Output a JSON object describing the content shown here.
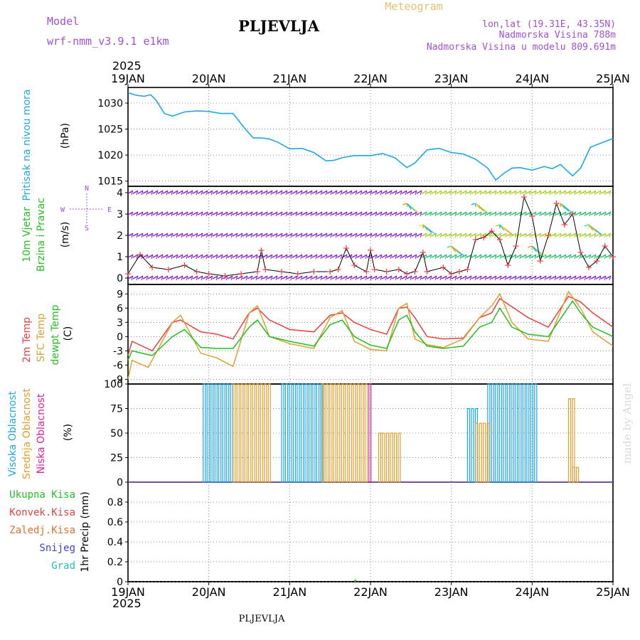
{
  "header": {
    "model_label": "Model",
    "model_name": "wrf-nmm_v3.9.1 e1km",
    "station": "PLJEVLJA",
    "product": "Meteogram",
    "coords": "lon,lat (19.31E, 43.35N)",
    "elevation": "Nadmorska Visina 788m",
    "model_elevation": "Nadmorska Visina u modelu 809.691m"
  },
  "footer": {
    "station": "PLJEVLJA",
    "credit": "made by Angel"
  },
  "time_axis": {
    "year": "2025",
    "ticks": [
      "19JAN",
      "20JAN",
      "21JAN",
      "22JAN",
      "23JAN",
      "24JAN",
      "25JAN"
    ]
  },
  "colors": {
    "pressure": "#1ea8e8",
    "t2m": "#e84040",
    "sfc": "#dca030",
    "dewpt": "#22c022",
    "high_cloud": "#1ea8e8",
    "mid_cloud": "#dca030",
    "low_cloud": "#e020a0",
    "wind_purple": "#8a20d0",
    "precip": "#22c022"
  },
  "chart_data": [
    {
      "type": "line",
      "name": "pressure",
      "labels": {
        "title": "Pritisak na nivou mora",
        "unit": "(hPa)"
      },
      "ylim": [
        1014,
        1033
      ],
      "yticks": [
        "1015",
        "1020",
        "1025",
        "1030"
      ],
      "x_days": [
        0,
        0.1,
        0.2,
        0.28,
        0.35,
        0.45,
        0.55,
        0.7,
        0.85,
        1.0,
        1.15,
        1.3,
        1.45,
        1.55,
        1.65,
        1.75,
        1.85,
        2.0,
        2.15,
        2.3,
        2.45,
        2.55,
        2.65,
        2.8,
        3.0,
        3.15,
        3.3,
        3.45,
        3.55,
        3.7,
        3.85,
        4.0,
        4.15,
        4.3,
        4.45,
        4.55,
        4.65,
        4.75,
        4.85,
        5.0,
        5.15,
        5.25,
        5.35,
        5.5,
        5.6,
        5.72,
        5.85,
        6.0
      ],
      "values": [
        1032,
        1031.5,
        1031.3,
        1031.6,
        1030.5,
        1028,
        1027.5,
        1028.3,
        1028.5,
        1028.4,
        1028,
        1028,
        1025,
        1023.3,
        1023.3,
        1023.1,
        1022.5,
        1021.2,
        1021.3,
        1020.5,
        1018.9,
        1019,
        1019.5,
        1019.9,
        1019.9,
        1020.3,
        1019.5,
        1017.6,
        1018.5,
        1021,
        1021.3,
        1020.5,
        1020.2,
        1019.2,
        1017.5,
        1015.2,
        1016.5,
        1017.5,
        1017.6,
        1017.1,
        1017.8,
        1017.4,
        1018.2,
        1016,
        1017.5,
        1021.5,
        1022.3,
        1023.2
      ]
    },
    {
      "type": "scatter",
      "name": "wind",
      "labels": {
        "title": "10m Vjetar",
        "subtitle": "Brzina i Pravac",
        "unit": "(m/s)",
        "compass": [
          "N",
          "W",
          "E",
          "S"
        ]
      },
      "ylim": [
        -0.3,
        4.3
      ],
      "yticks": [
        "0",
        "1",
        "2",
        "3",
        "4"
      ],
      "speed_x_days": [
        0,
        0.15,
        0.3,
        0.5,
        0.7,
        0.85,
        1.0,
        1.2,
        1.4,
        1.6,
        1.65,
        1.7,
        1.9,
        2.1,
        2.3,
        2.5,
        2.6,
        2.7,
        2.8,
        2.95,
        3.0,
        3.05,
        3.2,
        3.35,
        3.45,
        3.55,
        3.65,
        3.7,
        3.9,
        4.0,
        4.1,
        4.2,
        4.3,
        4.4,
        4.5,
        4.6,
        4.7,
        4.8,
        4.9,
        5.0,
        5.1,
        5.2,
        5.3,
        5.4,
        5.5,
        5.6,
        5.7,
        5.8,
        5.9,
        6.0
      ],
      "speed_values": [
        0.2,
        1.1,
        0.5,
        0.4,
        0.6,
        0.3,
        0.2,
        0.1,
        0.2,
        0.3,
        1.3,
        0.4,
        0.3,
        0.2,
        0.3,
        0.3,
        0.4,
        1.4,
        0.6,
        0.3,
        1.3,
        0.4,
        0.3,
        0.4,
        0.2,
        0.3,
        1.2,
        0.3,
        0.5,
        0.2,
        0.3,
        0.4,
        1.8,
        1.9,
        2.2,
        1.8,
        0.6,
        1.5,
        3.8,
        2.9,
        0.8,
        2.0,
        3.5,
        2.5,
        3.0,
        1.2,
        0.5,
        0.8,
        1.5,
        1.0
      ]
    },
    {
      "type": "line",
      "name": "temperature",
      "labels": {
        "t2m": "2m Temp",
        "sfc": "SFC Temp",
        "dewpt": "dewpt Temp",
        "unit": "(C)"
      },
      "ylim": [
        -10,
        11
      ],
      "yticks": [
        "-9",
        "-6",
        "-3",
        "0",
        "3",
        "6",
        "9"
      ],
      "series": [
        {
          "key": "t2m",
          "x": [
            0,
            0.05,
            0.3,
            0.55,
            0.65,
            0.9,
            1.1,
            1.3,
            1.5,
            1.6,
            1.75,
            2.0,
            2.3,
            2.5,
            2.65,
            2.8,
            3.0,
            3.2,
            3.35,
            3.45,
            3.55,
            3.7,
            3.9,
            4.15,
            4.35,
            4.5,
            4.6,
            4.75,
            4.95,
            5.2,
            5.45,
            5.6,
            5.75,
            6.0
          ],
          "y": [
            -4,
            -1,
            -3,
            3,
            3.5,
            1,
            0.5,
            -0.5,
            5,
            6,
            3.5,
            1.5,
            1,
            4.5,
            5,
            3,
            1.5,
            0.5,
            6,
            6.2,
            4,
            0,
            -0.5,
            -0.3,
            4,
            5,
            8,
            6.3,
            4,
            2,
            8.5,
            7.3,
            5,
            2
          ]
        },
        {
          "key": "sfc",
          "x": [
            0,
            0.05,
            0.25,
            0.55,
            0.65,
            0.9,
            1.1,
            1.3,
            1.5,
            1.6,
            1.75,
            2.0,
            2.3,
            2.5,
            2.65,
            2.8,
            3.0,
            3.2,
            3.35,
            3.45,
            3.55,
            3.7,
            3.9,
            4.15,
            4.35,
            4.5,
            4.6,
            4.75,
            4.95,
            5.2,
            5.45,
            5.6,
            5.75,
            6.0
          ],
          "y": [
            -9,
            -5,
            -6.5,
            3,
            4.5,
            -3.5,
            -4.5,
            -6.3,
            5,
            6.5,
            0,
            -1.5,
            -2.5,
            4,
            5.5,
            -1,
            -2.7,
            -3,
            6,
            7,
            -0.5,
            -1.7,
            -2.3,
            -0.5,
            4,
            6.5,
            9,
            3,
            -0.5,
            -1,
            9.5,
            6,
            1,
            -2
          ]
        },
        {
          "key": "dewpt",
          "x": [
            0,
            0.05,
            0.3,
            0.55,
            0.7,
            0.9,
            1.1,
            1.3,
            1.5,
            1.6,
            1.75,
            2.0,
            2.3,
            2.5,
            2.65,
            2.8,
            3.0,
            3.2,
            3.35,
            3.45,
            3.55,
            3.7,
            3.9,
            4.15,
            4.35,
            4.5,
            4.6,
            4.75,
            4.95,
            5.2,
            5.5,
            5.6,
            5.75,
            6.0
          ],
          "y": [
            -5,
            -3,
            -4,
            0,
            1.5,
            -2.3,
            -2.5,
            -2.5,
            2,
            3.5,
            0,
            -1,
            -2,
            2.5,
            3.5,
            0,
            -1.8,
            -2.5,
            3.5,
            4.5,
            1,
            -2,
            -2.5,
            -2,
            2,
            3,
            6,
            2,
            0.5,
            0,
            7.5,
            5,
            2,
            0
          ]
        }
      ]
    },
    {
      "type": "bar",
      "name": "cloud",
      "labels": {
        "high": "Visoka Oblacnost",
        "mid": "Srednja Oblacnost",
        "low": "Niska Oblacnost",
        "unit": "(%)"
      },
      "ylim": [
        0,
        100
      ],
      "yticks": [
        "0",
        "25",
        "50",
        "75",
        "100"
      ],
      "series": [
        {
          "key": "high",
          "spans": [
            [
              0.93,
              1.3,
              100
            ],
            [
              1.9,
              2.4,
              100
            ],
            [
              4.2,
              4.3,
              75
            ],
            [
              4.45,
              5.05,
              100
            ]
          ]
        },
        {
          "key": "mid",
          "spans": [
            [
              1.3,
              1.75,
              100
            ],
            [
              2.4,
              2.95,
              100
            ],
            [
              3.1,
              3.35,
              50
            ],
            [
              4.3,
              4.45,
              60
            ],
            [
              5.45,
              5.5,
              85
            ],
            [
              5.5,
              5.55,
              15
            ]
          ]
        },
        {
          "key": "low",
          "spans": [
            [
              2.98,
              3.0,
              100
            ]
          ]
        }
      ]
    },
    {
      "type": "bar",
      "name": "precipitation",
      "labels": {
        "total": "Ukupna Kisa",
        "convective": "Konvek.Kisa",
        "freezing": "Zaledj.Kisa",
        "snow": "Snijeg",
        "hail": "Grad",
        "unit": "1hr Precip (mm)"
      },
      "ylim": [
        0,
        1.0
      ],
      "yticks": [
        "0",
        "0.2",
        "0.4",
        "0.6",
        "0.8"
      ],
      "x_days": [
        2.8
      ],
      "values": [
        0.02
      ]
    }
  ]
}
